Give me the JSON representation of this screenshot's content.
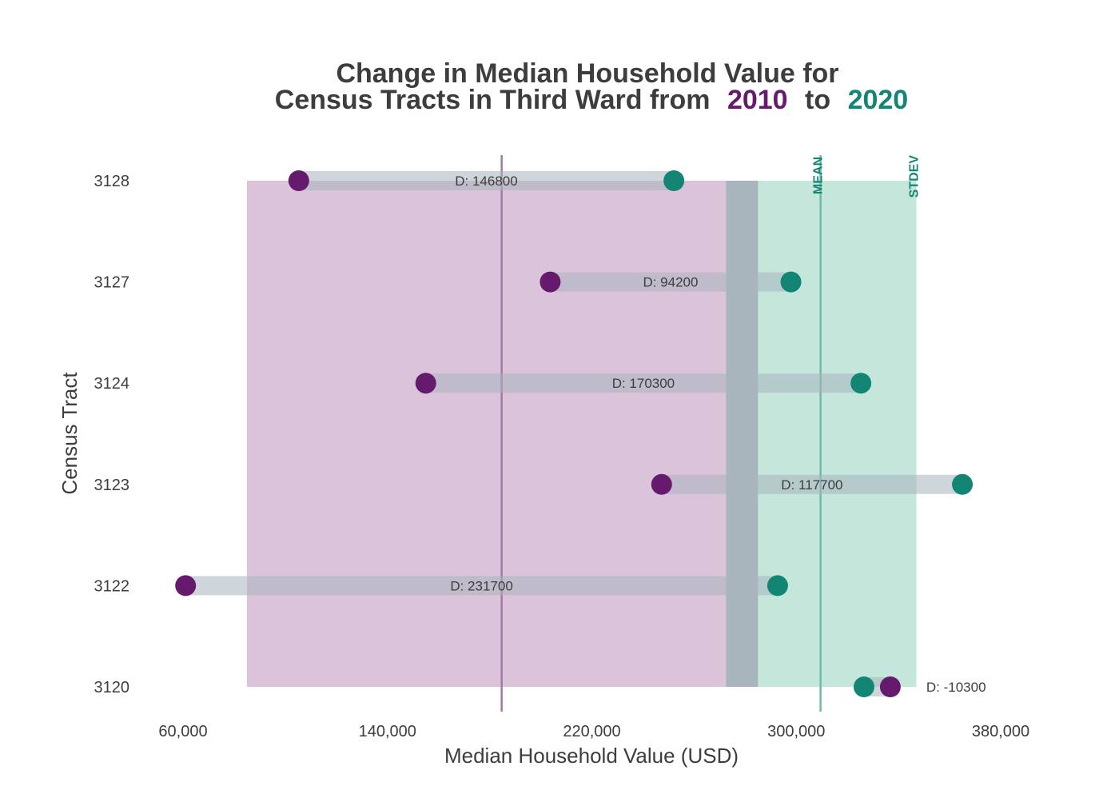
{
  "title": {
    "line1": "Change in Median Household Value for",
    "line2_prefix": "Census Tracts in Third Ward from",
    "year_start": "2010",
    "connector": "to",
    "year_end": "2020"
  },
  "colors": {
    "start": "#661a6e",
    "end": "#138574",
    "start_band": "#dbc3da",
    "end_band": "#c5e6db",
    "overlap_band": "#a8b5bd",
    "connector_bar": "#a8b5bd",
    "text": "#3d3d3d"
  },
  "chart_data": {
    "type": "dumbbell",
    "xlabel": "Median Household Value (USD)",
    "ylabel": "Census Tract",
    "xlim": [
      40000,
      385000
    ],
    "x_ticks": [
      60000,
      140000,
      220000,
      300000,
      380000
    ],
    "x_tick_labels": [
      "60,000",
      "140,000",
      "220,000",
      "300,000",
      "380,000"
    ],
    "categories": [
      "3128",
      "3127",
      "3124",
      "3123",
      "3122",
      "3120"
    ],
    "series": [
      {
        "name": "2010",
        "values": [
          105300,
          203700,
          155000,
          247300,
          61000,
          336800
        ]
      },
      {
        "name": "2020",
        "values": [
          252100,
          297900,
          325300,
          365000,
          292700,
          326500
        ]
      }
    ],
    "differences": [
      146800,
      94200,
      170300,
      117700,
      231700,
      -10300
    ],
    "difference_labels": [
      "D:  146800",
      "D:  94200",
      "D:  170300",
      "D:  117700",
      "D:  231700",
      "D:  -10300"
    ],
    "reference_lines": {
      "mean_2010": 184700,
      "mean_2020": 309500,
      "mean_label": "MEAN",
      "stdev_label": "STDEV"
    },
    "bands": {
      "band_2010": [
        85000,
        285000
      ],
      "band_2020": [
        272500,
        347000
      ]
    },
    "grid": false
  }
}
